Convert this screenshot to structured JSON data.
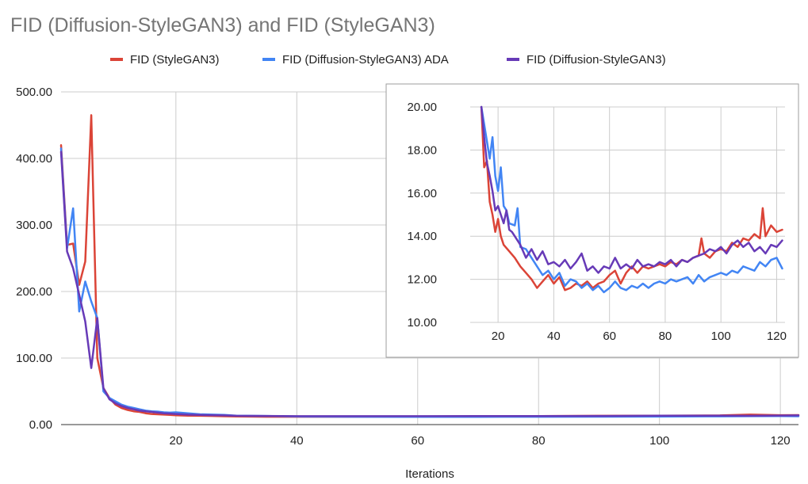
{
  "chart_data": [
    {
      "type": "line",
      "title": "FID (Diffusion-StyleGAN3) and FID (StyleGAN3)",
      "xlabel": "Iterations",
      "ylabel": "",
      "xlim": [
        1,
        123
      ],
      "ylim": [
        0,
        500
      ],
      "xticks": [
        20,
        40,
        60,
        80,
        100,
        120
      ],
      "yticks": [
        0,
        100,
        200,
        300,
        400,
        500
      ],
      "ytick_labels": [
        "0.00",
        "100.00",
        "200.00",
        "300.00",
        "400.00",
        "500.00"
      ],
      "grid": true,
      "legend_position": "top",
      "series": [
        {
          "name": "FID (StyleGAN3)",
          "color": "#db4437",
          "x": [
            1,
            2,
            3,
            4,
            5,
            6,
            7,
            8,
            9,
            10,
            11,
            12,
            13,
            14,
            15,
            16,
            17,
            18,
            19,
            20,
            22,
            24,
            26,
            28,
            30,
            35,
            40,
            50,
            60,
            70,
            80,
            90,
            100,
            110,
            115,
            120,
            123
          ],
          "y": [
            420,
            270,
            272,
            210,
            245,
            465,
            100,
            55,
            40,
            30,
            25,
            22,
            20,
            19,
            17,
            16,
            15.5,
            15,
            14.5,
            14,
            13.5,
            13.2,
            13,
            12.5,
            12.2,
            11.8,
            11.8,
            11.8,
            12,
            12.5,
            12.8,
            13.2,
            13.5,
            13.8,
            15,
            14.2,
            14.3
          ]
        },
        {
          "name": "FID (Diffusion-StyleGAN3) ADA",
          "color": "#4285f4",
          "x": [
            1,
            2,
            3,
            4,
            5,
            6,
            7,
            8,
            9,
            10,
            11,
            12,
            13,
            14,
            15,
            16,
            17,
            18,
            19,
            20,
            22,
            24,
            26,
            28,
            30,
            35,
            40,
            50,
            60,
            70,
            80,
            90,
            100,
            110,
            115,
            120,
            123
          ],
          "y": [
            415,
            265,
            325,
            170,
            215,
            185,
            160,
            50,
            40,
            35,
            30,
            27,
            25,
            23,
            21,
            20,
            19.5,
            18.5,
            18,
            18.5,
            17,
            15.5,
            15,
            14.5,
            13.5,
            13,
            12.2,
            11.8,
            11.6,
            11.7,
            11.8,
            11.9,
            12,
            12.4,
            12.6,
            12.9,
            12.5
          ]
        },
        {
          "name": "FID (Diffusion-StyleGAN3)",
          "color": "#673ab7",
          "x": [
            1,
            2,
            3,
            4,
            5,
            6,
            7,
            8,
            9,
            10,
            11,
            12,
            13,
            14,
            15,
            16,
            17,
            18,
            19,
            20,
            22,
            24,
            26,
            28,
            30,
            35,
            40,
            50,
            60,
            70,
            80,
            90,
            100,
            110,
            115,
            120,
            123
          ],
          "y": [
            410,
            260,
            235,
            195,
            155,
            85,
            160,
            55,
            38,
            32,
            28,
            25,
            23,
            21,
            20,
            19,
            18,
            17,
            16.5,
            16,
            15,
            14.5,
            14.2,
            13.8,
            13.2,
            13,
            12.6,
            12.6,
            12.6,
            12.7,
            12.8,
            13,
            13.3,
            13.5,
            13.2,
            13.6,
            13.8
          ]
        }
      ]
    },
    {
      "type": "line",
      "title": "",
      "xlabel": "",
      "ylabel": "",
      "xlim": [
        10,
        123
      ],
      "ylim": [
        10,
        20
      ],
      "xticks": [
        20,
        40,
        60,
        80,
        100,
        120
      ],
      "yticks": [
        10,
        12,
        14,
        16,
        18,
        20
      ],
      "ytick_labels": [
        "10.00",
        "12.00",
        "14.00",
        "16.00",
        "18.00",
        "20.00"
      ],
      "grid": true,
      "series": [
        {
          "name": "FID (StyleGAN3)",
          "color": "#db4437",
          "x": [
            14,
            15,
            16,
            17,
            18,
            19,
            20,
            21,
            22,
            24,
            26,
            28,
            30,
            32,
            34,
            36,
            38,
            40,
            42,
            44,
            46,
            48,
            50,
            52,
            54,
            56,
            58,
            60,
            62,
            64,
            66,
            68,
            70,
            72,
            74,
            76,
            78,
            80,
            82,
            84,
            86,
            88,
            90,
            92,
            93,
            94,
            96,
            98,
            100,
            102,
            104,
            106,
            108,
            110,
            112,
            114,
            115,
            116,
            118,
            120,
            122
          ],
          "y": [
            20,
            17.2,
            17.5,
            15.6,
            15,
            14.2,
            14.8,
            14,
            13.6,
            13.3,
            13,
            12.6,
            12.3,
            12,
            11.6,
            11.9,
            12.2,
            11.8,
            12.1,
            11.5,
            11.6,
            11.8,
            11.7,
            11.9,
            11.6,
            11.8,
            11.9,
            12.2,
            12.4,
            11.8,
            12.3,
            12.6,
            12.3,
            12.6,
            12.5,
            12.6,
            12.7,
            12.6,
            12.8,
            12.7,
            12.9,
            12.8,
            13,
            13.1,
            13.9,
            13.2,
            13,
            13.3,
            13.4,
            13.3,
            13.7,
            13.5,
            13.9,
            13.8,
            14.1,
            13.9,
            15.3,
            14,
            14.5,
            14.2,
            14.3
          ]
        },
        {
          "name": "FID (Diffusion-StyleGAN3) ADA",
          "color": "#4285f4",
          "x": [
            14,
            15,
            16,
            17,
            18,
            19,
            20,
            21,
            22,
            23,
            24,
            26,
            27,
            28,
            30,
            32,
            34,
            36,
            38,
            40,
            42,
            44,
            46,
            48,
            50,
            52,
            54,
            56,
            58,
            60,
            62,
            64,
            66,
            68,
            70,
            72,
            74,
            76,
            78,
            80,
            82,
            84,
            86,
            88,
            90,
            92,
            94,
            96,
            98,
            100,
            102,
            104,
            106,
            108,
            110,
            112,
            114,
            116,
            118,
            120,
            122
          ],
          "y": [
            20,
            19.2,
            18.4,
            17.6,
            18.6,
            16.8,
            16.1,
            17.2,
            15.4,
            15.2,
            14.6,
            14.5,
            15.3,
            13.5,
            13.4,
            13,
            12.6,
            12.2,
            12.4,
            12,
            12.3,
            11.7,
            12,
            11.9,
            11.6,
            11.8,
            11.5,
            11.7,
            11.4,
            11.6,
            11.9,
            11.6,
            11.5,
            11.7,
            11.6,
            11.8,
            11.6,
            11.8,
            11.9,
            11.8,
            12,
            11.9,
            12,
            12.1,
            11.8,
            12.2,
            11.9,
            12.1,
            12.2,
            12.3,
            12.2,
            12.4,
            12.3,
            12.6,
            12.5,
            12.4,
            12.8,
            12.6,
            12.9,
            13,
            12.5
          ]
        },
        {
          "name": "FID (Diffusion-StyleGAN3)",
          "color": "#673ab7",
          "x": [
            14,
            15,
            16,
            17,
            18,
            19,
            20,
            21,
            22,
            23,
            24,
            25,
            26,
            28,
            30,
            32,
            34,
            36,
            38,
            40,
            42,
            44,
            46,
            48,
            50,
            52,
            54,
            56,
            58,
            60,
            62,
            64,
            66,
            68,
            70,
            72,
            74,
            76,
            78,
            80,
            82,
            84,
            86,
            88,
            90,
            92,
            94,
            96,
            98,
            100,
            102,
            104,
            106,
            108,
            110,
            112,
            114,
            116,
            118,
            120,
            122
          ],
          "y": [
            20,
            18.6,
            17.4,
            16.8,
            16.1,
            15.2,
            15.4,
            15,
            14.6,
            15.2,
            14.3,
            14.2,
            14,
            13.6,
            13,
            13.4,
            12.9,
            13.3,
            12.7,
            12.8,
            12.6,
            12.9,
            12.5,
            12.8,
            13.2,
            12.4,
            12.6,
            12.3,
            12.6,
            12.5,
            13,
            12.5,
            12.7,
            12.5,
            12.9,
            12.6,
            12.7,
            12.6,
            12.8,
            12.7,
            12.9,
            12.6,
            12.9,
            12.8,
            13,
            13.1,
            13.2,
            13.4,
            13.3,
            13.5,
            13.2,
            13.6,
            13.8,
            13.5,
            13.7,
            13.3,
            13.5,
            13.2,
            13.6,
            13.5,
            13.8
          ]
        }
      ]
    }
  ]
}
